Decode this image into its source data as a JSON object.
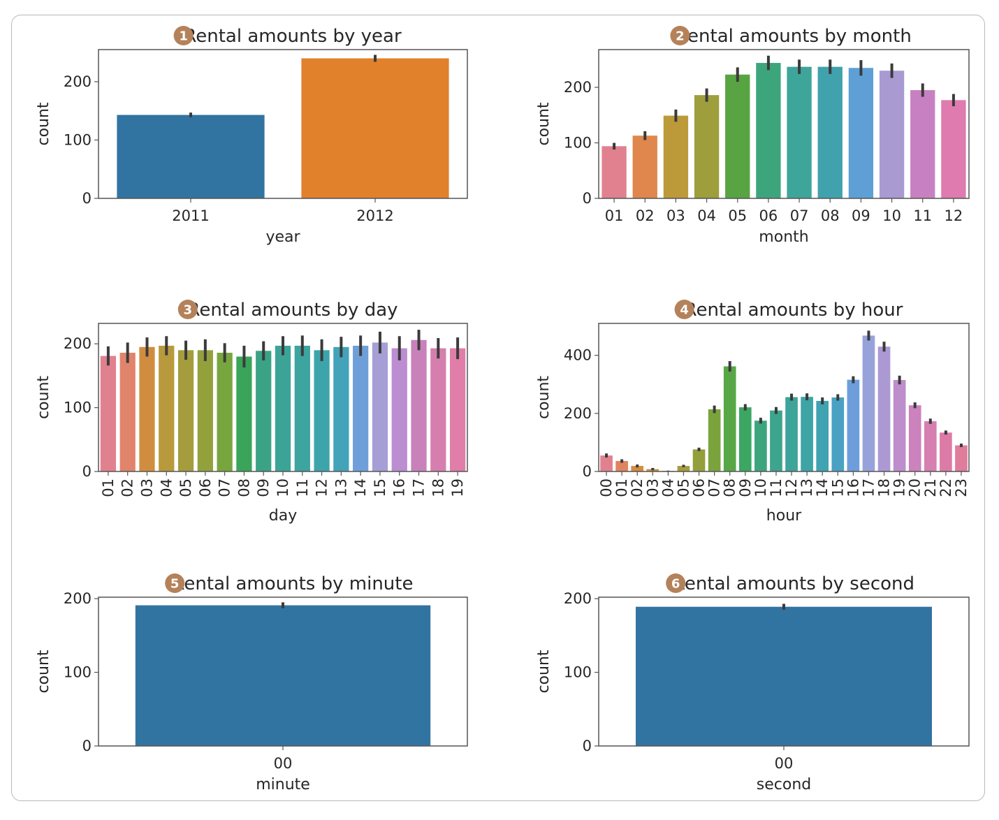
{
  "badge_color": "#b4825a",
  "chart_data": [
    {
      "type": "bar",
      "badge": "1",
      "title": "Rental amounts by year",
      "xlabel": "year",
      "ylabel": "count",
      "ylim": [
        0,
        255
      ],
      "yticks": [
        0,
        100,
        200
      ],
      "categories": [
        "2011",
        "2012"
      ],
      "values": [
        143,
        240
      ],
      "errors": [
        4,
        6
      ],
      "colors": [
        "#3274a1",
        "#e1812c"
      ],
      "xtick_rotation": 0
    },
    {
      "type": "bar",
      "badge": "2",
      "title": "Rental amounts by month",
      "xlabel": "month",
      "ylabel": "count",
      "ylim": [
        0,
        268
      ],
      "yticks": [
        0,
        100,
        200
      ],
      "categories": [
        "01",
        "02",
        "03",
        "04",
        "05",
        "06",
        "07",
        "08",
        "09",
        "10",
        "11",
        "12"
      ],
      "values": [
        94,
        113,
        149,
        186,
        223,
        244,
        237,
        237,
        235,
        230,
        195,
        177
      ],
      "errors": [
        6,
        8,
        11,
        12,
        13,
        13,
        13,
        13,
        14,
        13,
        12,
        11
      ],
      "colors": [
        "#e1818f",
        "#e0874e",
        "#bc9a3a",
        "#9e9e3c",
        "#58a443",
        "#3da57c",
        "#3ea59b",
        "#40a2ad",
        "#5ea0d6",
        "#a99ad2",
        "#c781c2",
        "#df7bae"
      ],
      "xtick_rotation": 0
    },
    {
      "type": "bar",
      "badge": "3",
      "title": "Rental amounts by day",
      "xlabel": "day",
      "ylabel": "count",
      "ylim": [
        0,
        232
      ],
      "yticks": [
        0,
        100,
        200
      ],
      "categories": [
        "01",
        "02",
        "03",
        "04",
        "05",
        "06",
        "07",
        "08",
        "09",
        "10",
        "11",
        "12",
        "13",
        "14",
        "15",
        "16",
        "17",
        "18",
        "19"
      ],
      "values": [
        181,
        186,
        195,
        197,
        190,
        190,
        186,
        180,
        189,
        197,
        197,
        190,
        195,
        197,
        202,
        193,
        206,
        193,
        193
      ],
      "errors": [
        15,
        16,
        15,
        15,
        15,
        17,
        15,
        17,
        15,
        15,
        16,
        17,
        16,
        16,
        17,
        19,
        16,
        16,
        17
      ],
      "colors": [
        "#e1818f",
        "#e1846c",
        "#d18d3f",
        "#b89a3c",
        "#a49c3d",
        "#93a13c",
        "#77a63e",
        "#3aa45a",
        "#3ba385",
        "#3ca497",
        "#3da49f",
        "#3ea4ab",
        "#42a3b9",
        "#6f9fd9",
        "#a69fd5",
        "#bc8dd1",
        "#c981bc",
        "#d67fae",
        "#e07da9"
      ],
      "xtick_rotation": -90
    },
    {
      "type": "bar",
      "badge": "4",
      "title": "Rental amounts by hour",
      "xlabel": "hour",
      "ylabel": "count",
      "ylim": [
        0,
        510
      ],
      "yticks": [
        0,
        200,
        400
      ],
      "categories": [
        "00",
        "01",
        "02",
        "03",
        "04",
        "05",
        "06",
        "07",
        "08",
        "09",
        "10",
        "11",
        "12",
        "13",
        "14",
        "15",
        "16",
        "17",
        "18",
        "19",
        "20",
        "21",
        "22",
        "23"
      ],
      "values": [
        55,
        36,
        19,
        8,
        2,
        19,
        76,
        214,
        362,
        221,
        175,
        210,
        256,
        257,
        243,
        255,
        316,
        468,
        430,
        315,
        228,
        173,
        134,
        90
      ],
      "errors": [
        7,
        6,
        5,
        4,
        1,
        4,
        6,
        13,
        18,
        11,
        10,
        12,
        12,
        12,
        12,
        11,
        12,
        17,
        17,
        15,
        10,
        9,
        7,
        6
      ],
      "colors": [
        "#e1818f",
        "#e0845f",
        "#d98b3b",
        "#c9923a",
        "#b8983b",
        "#a69c3c",
        "#949f3c",
        "#7aa33e",
        "#57a747",
        "#3ca663",
        "#3ca57e",
        "#3da48d",
        "#3da49a",
        "#3ea4a6",
        "#3fa3b1",
        "#49a1c4",
        "#6d9edb",
        "#98a2da",
        "#ac99d4",
        "#be8dcb",
        "#cb82bd",
        "#d67fb1",
        "#dd7ba7",
        "#e07c9c"
      ],
      "xtick_rotation": -90
    },
    {
      "type": "bar",
      "badge": "5",
      "title": "Rental amounts by minute",
      "xlabel": "minute",
      "ylabel": "count",
      "ylim": [
        0,
        202
      ],
      "yticks": [
        0,
        100,
        200
      ],
      "categories": [
        "00"
      ],
      "values": [
        191
      ],
      "errors": [
        4
      ],
      "colors": [
        "#3274a1"
      ],
      "xtick_rotation": 0
    },
    {
      "type": "bar",
      "badge": "6",
      "title": "Rental amounts by second",
      "xlabel": "second",
      "ylabel": "count",
      "ylim": [
        0,
        202
      ],
      "yticks": [
        0,
        100,
        200
      ],
      "categories": [
        "00"
      ],
      "values": [
        189
      ],
      "errors": [
        4
      ],
      "colors": [
        "#3274a1"
      ],
      "xtick_rotation": 0
    }
  ]
}
